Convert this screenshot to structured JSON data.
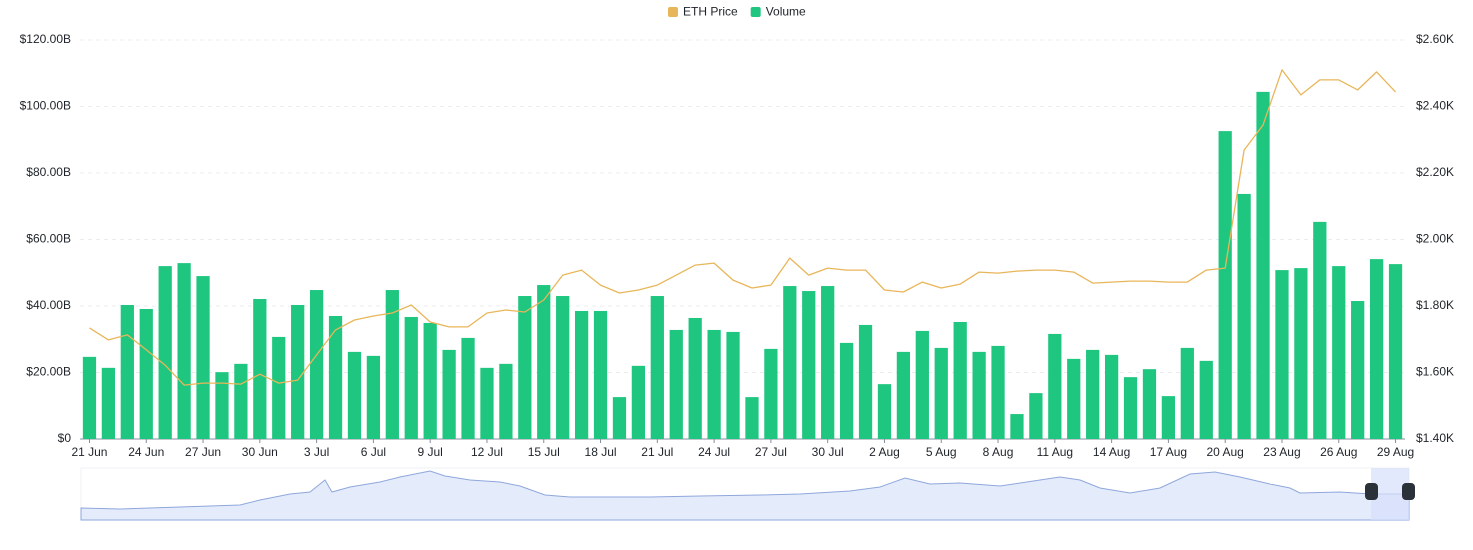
{
  "chart_data": {
    "type": "bar",
    "categories": [
      "21 Jun",
      null,
      null,
      "24 Jun",
      null,
      null,
      "27 Jun",
      null,
      null,
      "30 Jun",
      null,
      null,
      "3 Jul",
      null,
      null,
      "6 Jul",
      null,
      null,
      "9 Jul",
      null,
      null,
      "12 Jul",
      null,
      null,
      "15 Jul",
      null,
      null,
      "18 Jul",
      null,
      null,
      "21 Jul",
      null,
      null,
      "24 Jul",
      null,
      null,
      "27 Jul",
      null,
      null,
      "30 Jul",
      null,
      null,
      "2 Aug",
      null,
      null,
      "5 Aug",
      null,
      null,
      "8 Aug",
      null,
      null,
      "11 Aug",
      null,
      null,
      "14 Aug",
      null,
      null,
      "17 Aug",
      null,
      null,
      "20 Aug",
      null,
      null,
      "23 Aug",
      null,
      null,
      "26 Aug",
      null,
      null,
      "29 Aug"
    ],
    "series": [
      {
        "name": "Volume",
        "type": "bar",
        "color": "#1fc67f",
        "values": [
          24.7,
          21.4,
          40.3,
          39.1,
          52,
          52.9,
          49,
          20.1,
          22.6,
          42.1,
          30.7,
          40.3,
          44.8,
          37,
          26.2,
          25,
          44.8,
          36.7,
          34.9,
          26.8,
          30.4,
          21.4,
          22.6,
          43,
          46.3,
          43,
          38.5,
          38.5,
          12.6,
          22,
          43,
          32.8,
          36.4,
          32.8,
          32.2,
          12.6,
          27.1,
          46,
          44.5,
          46,
          28.9,
          34.3,
          16.5,
          26.2,
          32.5,
          27.4,
          35.2,
          26.2,
          28,
          7.5,
          13.8,
          31.6,
          24.1,
          26.8,
          25.3,
          18.6,
          21,
          12.9,
          27.4,
          23.5,
          92.6,
          73.7,
          104.4,
          50.8,
          51.4,
          65.3,
          52,
          41.5,
          54.1,
          52.6
        ]
      },
      {
        "name": "ETH Price",
        "type": "line",
        "axis": "y2",
        "color": "#e8b65a",
        "values": [
          1.734,
          1.698,
          1.713,
          1.668,
          1.622,
          1.562,
          1.568,
          1.568,
          1.565,
          1.595,
          1.568,
          1.577,
          1.653,
          1.728,
          1.758,
          1.77,
          1.779,
          1.803,
          1.752,
          1.737,
          1.737,
          1.779,
          1.788,
          1.782,
          1.818,
          1.893,
          1.908,
          1.863,
          1.839,
          1.848,
          1.863,
          1.893,
          1.923,
          1.929,
          1.878,
          1.854,
          1.863,
          1.944,
          1.893,
          1.914,
          1.908,
          1.908,
          1.848,
          1.842,
          1.872,
          1.854,
          1.866,
          1.902,
          1.899,
          1.905,
          1.908,
          1.908,
          1.902,
          1.869,
          1.872,
          1.875,
          1.875,
          1.872,
          1.872,
          1.908,
          1.914,
          2.269,
          2.344,
          2.51,
          2.435,
          2.48,
          2.48,
          2.45,
          2.504,
          2.444
        ]
      }
    ],
    "ylim": [
      0,
      120
    ],
    "yticks": [
      {
        "value": 0,
        "label": "$0"
      },
      {
        "value": 20,
        "label": "$20.00B"
      },
      {
        "value": 40,
        "label": "$40.00B"
      },
      {
        "value": 60,
        "label": "$60.00B"
      },
      {
        "value": 80,
        "label": "$80.00B"
      },
      {
        "value": 100,
        "label": "$100.00B"
      },
      {
        "value": 120,
        "label": "$120.00B"
      }
    ],
    "y2lim": [
      1.4,
      2.6
    ],
    "y2ticks": [
      {
        "value": 1.4,
        "label": "$1.40K"
      },
      {
        "value": 1.6,
        "label": "$1.60K"
      },
      {
        "value": 1.8,
        "label": "$1.80K"
      },
      {
        "value": 2.0,
        "label": "$2.00K"
      },
      {
        "value": 2.2,
        "label": "$2.20K"
      },
      {
        "value": 2.4,
        "label": "$2.40K"
      },
      {
        "value": 2.6,
        "label": "$2.60K"
      }
    ],
    "grid": true,
    "legend": "top"
  }
}
